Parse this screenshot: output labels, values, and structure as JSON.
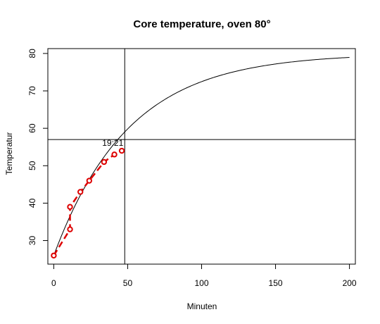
{
  "chart_data": {
    "type": "line",
    "title": "Core temperature, oven 80°",
    "xlabel": "Minuten",
    "ylabel": "Temperatur",
    "xlim": [
      -4,
      204
    ],
    "ylim": [
      23.7,
      81.3
    ],
    "x_ticks": [
      0,
      50,
      100,
      150,
      200
    ],
    "y_ticks": [
      30,
      40,
      50,
      60,
      70,
      80
    ],
    "grid": false,
    "colors": {
      "fit": "#000000",
      "observed": "#dd0000",
      "reference": "#000000"
    },
    "series": [
      {
        "kind": "fitted-curve",
        "style": "solid",
        "model": {
          "asymptote": 80,
          "start": 26,
          "k": 0.0197
        },
        "x_range": [
          0,
          200
        ]
      },
      {
        "kind": "observations",
        "style": "dashed-with-circles",
        "points": [
          {
            "x": 0,
            "y": 26
          },
          {
            "x": 11,
            "y": 33
          },
          {
            "x": 11,
            "y": 39
          },
          {
            "x": 18,
            "y": 43
          },
          {
            "x": 24,
            "y": 46
          },
          {
            "x": 34,
            "y": 51
          },
          {
            "x": 41,
            "y": 53
          },
          {
            "x": 46,
            "y": 54
          }
        ]
      }
    ],
    "reference_lines": {
      "vertical_x": 48,
      "horizontal_y": 57
    },
    "annotations": [
      {
        "text": "19:21",
        "x": 48,
        "y": 57
      }
    ]
  }
}
